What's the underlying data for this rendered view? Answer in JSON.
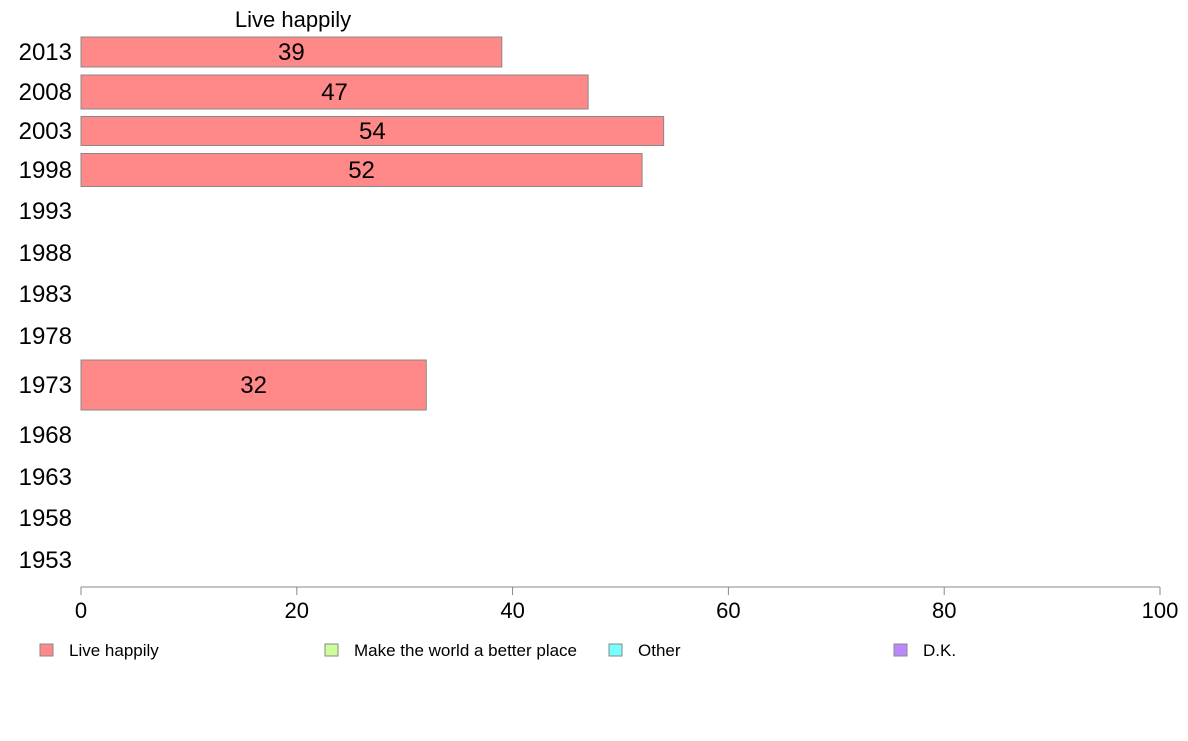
{
  "chart_data": {
    "type": "bar",
    "orientation": "horizontal",
    "title": "Live happily",
    "xlim": [
      0,
      100
    ],
    "x_ticks": [
      0,
      20,
      40,
      60,
      80,
      100
    ],
    "categories": [
      "2013",
      "2008",
      "2003",
      "1998",
      "1993",
      "1988",
      "1983",
      "1978",
      "1973",
      "1968",
      "1963",
      "1958",
      "1953"
    ],
    "series": [
      {
        "name": "Live happily",
        "color": "#ff8888",
        "values": [
          39,
          47,
          54,
          52,
          null,
          null,
          null,
          null,
          32,
          null,
          null,
          null,
          null
        ],
        "data_labels": [
          "39",
          "47",
          "54",
          "52",
          "",
          "",
          "",
          "",
          "32",
          "",
          "",
          "",
          ""
        ]
      }
    ],
    "grid": false,
    "legend": {
      "position": "bottom",
      "items": [
        {
          "label": "Live happily",
          "color": "#ff8888"
        },
        {
          "label": "Make the world a better place",
          "color": "#ccff99"
        },
        {
          "label": "Other",
          "color": "#77ffff"
        },
        {
          "label": "D.K.",
          "color": "#bb88ff"
        }
      ]
    }
  }
}
